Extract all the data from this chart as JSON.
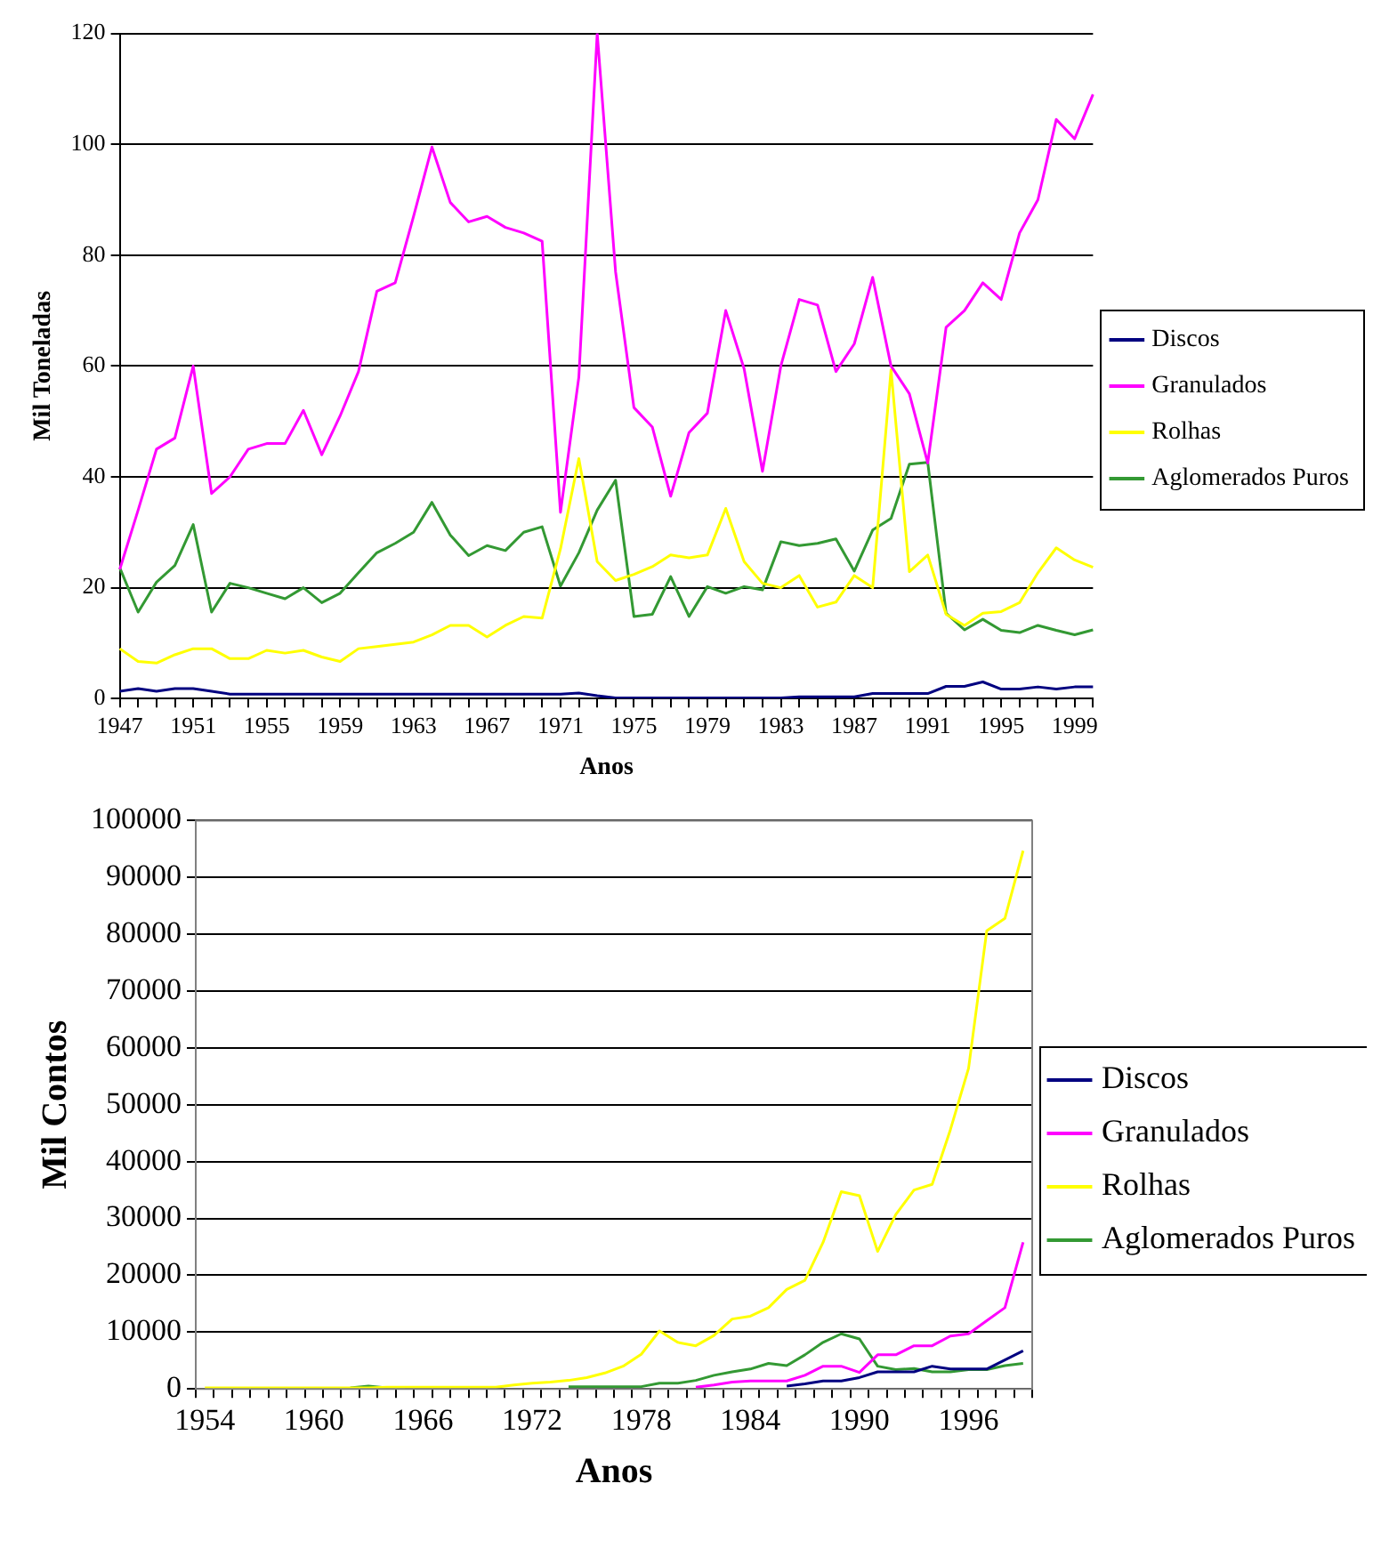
{
  "chart_data": [
    {
      "type": "line",
      "xlabel": "Anos",
      "ylabel": "Mil Toneladas",
      "categories": [
        "1947",
        null,
        null,
        null,
        "1951",
        null,
        null,
        null,
        "1955",
        null,
        null,
        null,
        "1959",
        null,
        null,
        null,
        "1963",
        null,
        null,
        null,
        "1967",
        null,
        null,
        null,
        "1971",
        null,
        null,
        null,
        "1975",
        null,
        null,
        null,
        "1979",
        null,
        null,
        null,
        "1983",
        null,
        null,
        null,
        "1987",
        null,
        null,
        null,
        "1991",
        null,
        null,
        null,
        "1995",
        null,
        null,
        null,
        "1999",
        null
      ],
      "series": [
        {
          "name": "Discos",
          "color": "#000080",
          "values": [
            1.3,
            1.8,
            1.3,
            1.8,
            1.8,
            1.3,
            0.8,
            0.8,
            0.8,
            0.8,
            0.8,
            0.8,
            0.8,
            0.8,
            0.8,
            0.8,
            0.8,
            0.8,
            0.8,
            0.8,
            0.8,
            0.8,
            0.8,
            0.8,
            0.8,
            1.0,
            0.5,
            0.1,
            0.1,
            0.1,
            0.1,
            0.1,
            0.1,
            0.1,
            0.1,
            0.1,
            0.1,
            0.3,
            0.3,
            0.3,
            0.3,
            0.9,
            0.9,
            0.9,
            0.9,
            2.2,
            2.2,
            3.0,
            1.7,
            1.7,
            2.1,
            1.7,
            2.1,
            2.1
          ]
        },
        {
          "name": "Granulados",
          "color": "#ff00ff",
          "values": [
            23.3,
            34,
            45,
            47,
            60,
            37,
            40,
            45,
            46,
            46,
            52,
            44,
            51,
            59,
            73.5,
            75,
            87,
            99.5,
            89.5,
            86,
            87,
            85,
            84,
            82.5,
            33.6,
            58,
            120,
            77,
            52.5,
            49,
            36.5,
            48,
            51.5,
            70,
            59.5,
            41,
            60,
            72,
            71,
            59,
            64,
            76,
            60,
            55,
            42.5,
            67,
            70,
            75,
            72,
            84,
            90,
            104.5,
            101,
            109
          ]
        },
        {
          "name": "Rolhas",
          "color": "#ffff00",
          "values": [
            9,
            6.7,
            6.4,
            7.9,
            9,
            9,
            7.2,
            7.2,
            8.7,
            8.2,
            8.7,
            7.5,
            6.7,
            9,
            9.4,
            9.8,
            10.2,
            11.5,
            13.2,
            13.2,
            11.1,
            13.2,
            14.8,
            14.5,
            27,
            43.3,
            24.7,
            21.3,
            22.4,
            23.8,
            25.9,
            25.4,
            25.9,
            34.3,
            24.7,
            20.8,
            20,
            22.2,
            16.5,
            17.4,
            22.2,
            20,
            59.3,
            22.9,
            25.9,
            15.2,
            13.2,
            15.4,
            15.7,
            17.3,
            22.7,
            27.2,
            25,
            23.7
          ]
        },
        {
          "name": "Aglomerados Puros",
          "color": "#339933",
          "values": [
            23.6,
            15.6,
            21,
            24,
            31.4,
            15.6,
            20.8,
            20,
            19,
            18,
            20,
            17.3,
            19,
            22.7,
            26.3,
            28,
            30,
            35.4,
            29.5,
            25.8,
            27.6,
            26.7,
            30,
            31,
            20.3,
            26.3,
            34,
            39.4,
            14.8,
            15.2,
            22,
            14.8,
            20.2,
            19,
            20.2,
            19.6,
            28.3,
            27.6,
            28,
            28.8,
            23,
            30.4,
            32.5,
            42.3,
            42.6,
            15.4,
            12.4,
            14.3,
            12.3,
            11.9,
            13.2,
            12.3,
            11.5,
            12.4
          ]
        }
      ],
      "ylim": [
        0,
        120
      ],
      "yticks": [
        0,
        20,
        40,
        60,
        80,
        100,
        120
      ],
      "grid": "y",
      "legend": "right",
      "marker": "none",
      "line_style": "solid"
    },
    {
      "type": "line",
      "xlabel": "Anos",
      "ylabel": "Mil Contos",
      "categories": [
        "1954",
        null,
        null,
        null,
        null,
        null,
        "1960",
        null,
        null,
        null,
        null,
        null,
        "1966",
        null,
        null,
        null,
        null,
        null,
        "1972",
        null,
        null,
        null,
        null,
        null,
        "1978",
        null,
        null,
        null,
        null,
        null,
        "1984",
        null,
        null,
        null,
        null,
        null,
        "1990",
        null,
        null,
        null,
        null,
        null,
        "1996",
        null,
        null,
        null
      ],
      "series": [
        {
          "name": "Discos",
          "color": "#000080",
          "values": [
            null,
            null,
            null,
            null,
            null,
            null,
            null,
            null,
            null,
            null,
            null,
            null,
            null,
            null,
            null,
            null,
            null,
            null,
            null,
            null,
            null,
            null,
            null,
            null,
            null,
            null,
            null,
            null,
            null,
            null,
            null,
            null,
            500,
            900,
            1400,
            1400,
            2000,
            3000,
            3000,
            3000,
            4000,
            3500,
            3500,
            3500,
            5100,
            6700
          ]
        },
        {
          "name": "Granulados",
          "color": "#ff00ff",
          "values": [
            null,
            null,
            null,
            null,
            null,
            null,
            null,
            null,
            null,
            null,
            null,
            null,
            null,
            null,
            null,
            null,
            null,
            null,
            null,
            null,
            null,
            null,
            null,
            null,
            null,
            null,
            null,
            300,
            700,
            1200,
            1400,
            1400,
            1400,
            2400,
            4000,
            4000,
            2900,
            6000,
            6000,
            7600,
            7600,
            9300,
            9700,
            12000,
            14300,
            25800
          ]
        },
        {
          "name": "Rolhas",
          "color": "#ffff00",
          "values": [
            200,
            200,
            200,
            200,
            200,
            200,
            200,
            200,
            200,
            200,
            300,
            300,
            300,
            300,
            300,
            300,
            300,
            700,
            1000,
            1200,
            1500,
            2000,
            2800,
            4000,
            6100,
            10200,
            8200,
            7600,
            9400,
            12300,
            12800,
            14300,
            17500,
            19100,
            25800,
            34700,
            34000,
            24200,
            30700,
            35000,
            36000,
            45600,
            56400,
            80600,
            82800,
            94700
          ]
        },
        {
          "name": "Aglomerados Puros",
          "color": "#339933",
          "values": [
            null,
            null,
            null,
            null,
            null,
            null,
            null,
            null,
            200,
            500,
            200,
            200,
            null,
            null,
            null,
            null,
            null,
            null,
            null,
            null,
            400,
            400,
            400,
            400,
            400,
            1000,
            1000,
            1500,
            2400,
            3000,
            3500,
            4500,
            4100,
            6000,
            8200,
            9700,
            8800,
            4000,
            3400,
            3600,
            3000,
            3000,
            3400,
            3400,
            4100,
            4500
          ]
        }
      ],
      "ylim": [
        0,
        100000
      ],
      "yticks": [
        0,
        10000,
        20000,
        30000,
        40000,
        50000,
        60000,
        70000,
        80000,
        90000,
        100000
      ],
      "grid": "y",
      "legend": "right",
      "marker": "none",
      "line_style": "solid"
    }
  ]
}
